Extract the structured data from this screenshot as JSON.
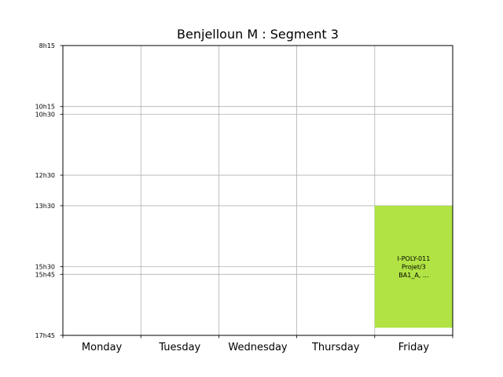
{
  "chart_data": {
    "type": "timetable",
    "title": "Benjelloun M : Segment 3",
    "days": [
      "Monday",
      "Tuesday",
      "Wednesday",
      "Thursday",
      "Friday"
    ],
    "time_ticks": [
      "8h15",
      "10h15",
      "10h30",
      "12h30",
      "13h30",
      "15h30",
      "15h45",
      "17h45"
    ],
    "ylim": [
      "8h15",
      "17h45"
    ],
    "grid": true,
    "events": [
      {
        "day": "Friday",
        "start": "13h30",
        "end": "17h30",
        "color": "#b0e343",
        "lines": [
          "I-POLY-011",
          "Projet/3",
          "BA1_A, ..."
        ]
      }
    ]
  }
}
